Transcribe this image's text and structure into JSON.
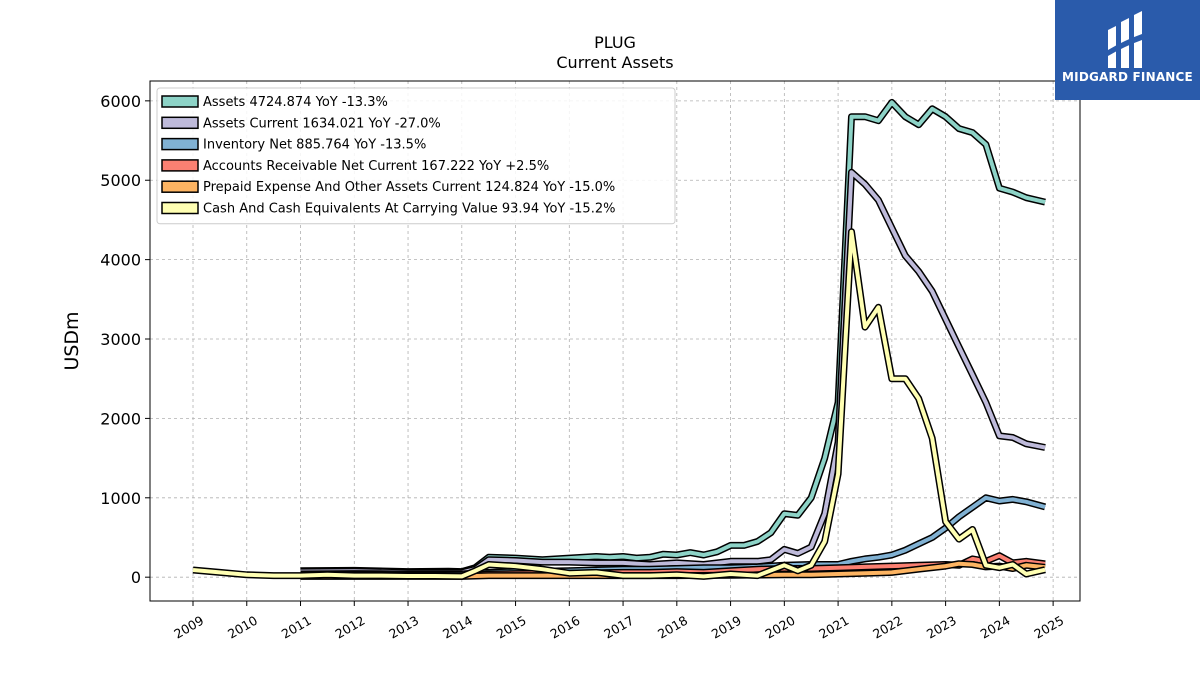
{
  "brand": {
    "name": "MIDGARD FINANCE",
    "bg_color": "#2a5bab"
  },
  "chart_data": {
    "type": "line",
    "title": "PLUG",
    "subtitle": "Current  Assets",
    "ylabel": "USDm",
    "xlabel": "",
    "ylim": [
      -300,
      6250
    ],
    "xlim": [
      2008.2,
      2025.5
    ],
    "yticks": [
      0,
      1000,
      2000,
      3000,
      4000,
      5000,
      6000
    ],
    "xticks": [
      "2009",
      "2010",
      "2011",
      "2012",
      "2013",
      "2014",
      "2015",
      "2016",
      "2017",
      "2018",
      "2019",
      "2020",
      "2021",
      "2022",
      "2023",
      "2024",
      "2025"
    ],
    "grid": true,
    "legend_position": "top-left",
    "series": [
      {
        "name": "Assets  4724.874 YoY -13.3%",
        "color": "#8dd3c7",
        "points": [
          [
            2011.0,
            80
          ],
          [
            2012.0,
            85
          ],
          [
            2013.0,
            70
          ],
          [
            2013.75,
            75
          ],
          [
            2014.0,
            70
          ],
          [
            2014.25,
            120
          ],
          [
            2014.5,
            250
          ],
          [
            2015.0,
            240
          ],
          [
            2015.5,
            220
          ],
          [
            2016.0,
            240
          ],
          [
            2016.5,
            260
          ],
          [
            2016.75,
            250
          ],
          [
            2017.0,
            260
          ],
          [
            2017.25,
            240
          ],
          [
            2017.5,
            250
          ],
          [
            2017.75,
            290
          ],
          [
            2018.0,
            280
          ],
          [
            2018.25,
            310
          ],
          [
            2018.5,
            280
          ],
          [
            2018.75,
            320
          ],
          [
            2019.0,
            400
          ],
          [
            2019.25,
            400
          ],
          [
            2019.5,
            450
          ],
          [
            2019.75,
            560
          ],
          [
            2020.0,
            800
          ],
          [
            2020.25,
            780
          ],
          [
            2020.5,
            1000
          ],
          [
            2020.75,
            1500
          ],
          [
            2021.0,
            2200
          ],
          [
            2021.25,
            5800
          ],
          [
            2021.5,
            5800
          ],
          [
            2021.75,
            5750
          ],
          [
            2022.0,
            5980
          ],
          [
            2022.25,
            5800
          ],
          [
            2022.5,
            5700
          ],
          [
            2022.75,
            5900
          ],
          [
            2023.0,
            5800
          ],
          [
            2023.25,
            5650
          ],
          [
            2023.5,
            5600
          ],
          [
            2023.75,
            5450
          ],
          [
            2024.0,
            4900
          ],
          [
            2024.25,
            4850
          ],
          [
            2024.5,
            4780
          ],
          [
            2024.85,
            4724.874
          ]
        ]
      },
      {
        "name": "Assets Current  1634.021 YoY -27.0%",
        "color": "#bebada",
        "points": [
          [
            2011.0,
            70
          ],
          [
            2012.0,
            75
          ],
          [
            2013.0,
            60
          ],
          [
            2014.0,
            60
          ],
          [
            2014.25,
            100
          ],
          [
            2014.5,
            220
          ],
          [
            2015.0,
            210
          ],
          [
            2015.5,
            190
          ],
          [
            2016.0,
            190
          ],
          [
            2016.5,
            180
          ],
          [
            2017.0,
            180
          ],
          [
            2017.5,
            160
          ],
          [
            2018.0,
            180
          ],
          [
            2018.5,
            160
          ],
          [
            2019.0,
            200
          ],
          [
            2019.5,
            200
          ],
          [
            2019.75,
            220
          ],
          [
            2020.0,
            350
          ],
          [
            2020.25,
            300
          ],
          [
            2020.5,
            380
          ],
          [
            2020.75,
            800
          ],
          [
            2021.0,
            1700
          ],
          [
            2021.25,
            5100
          ],
          [
            2021.5,
            4950
          ],
          [
            2021.75,
            4750
          ],
          [
            2022.0,
            4400
          ],
          [
            2022.25,
            4050
          ],
          [
            2022.5,
            3850
          ],
          [
            2022.75,
            3600
          ],
          [
            2023.0,
            3250
          ],
          [
            2023.25,
            2900
          ],
          [
            2023.5,
            2550
          ],
          [
            2023.75,
            2200
          ],
          [
            2024.0,
            1780
          ],
          [
            2024.25,
            1760
          ],
          [
            2024.5,
            1680
          ],
          [
            2024.85,
            1634.021
          ]
        ]
      },
      {
        "name": "Inventory Net  885.764 YoY -13.5%",
        "color": "#80b1d3",
        "points": [
          [
            2011.0,
            40
          ],
          [
            2012.0,
            45
          ],
          [
            2013.0,
            40
          ],
          [
            2014.0,
            40
          ],
          [
            2014.5,
            60
          ],
          [
            2015.0,
            70
          ],
          [
            2015.5,
            75
          ],
          [
            2016.0,
            80
          ],
          [
            2016.5,
            90
          ],
          [
            2017.0,
            100
          ],
          [
            2017.5,
            100
          ],
          [
            2018.0,
            110
          ],
          [
            2018.5,
            120
          ],
          [
            2019.0,
            120
          ],
          [
            2019.5,
            130
          ],
          [
            2020.0,
            150
          ],
          [
            2020.5,
            160
          ],
          [
            2021.0,
            160
          ],
          [
            2021.25,
            200
          ],
          [
            2021.5,
            230
          ],
          [
            2021.75,
            250
          ],
          [
            2022.0,
            280
          ],
          [
            2022.25,
            340
          ],
          [
            2022.5,
            420
          ],
          [
            2022.75,
            500
          ],
          [
            2023.0,
            620
          ],
          [
            2023.25,
            760
          ],
          [
            2023.5,
            880
          ],
          [
            2023.75,
            1000
          ],
          [
            2024.0,
            960
          ],
          [
            2024.25,
            980
          ],
          [
            2024.5,
            950
          ],
          [
            2024.85,
            885.764
          ]
        ]
      },
      {
        "name": "Accounts Receivable Net Current  167.222 YoY +2.5%",
        "color": "#fb8072",
        "points": [
          [
            2011.0,
            30
          ],
          [
            2012.0,
            30
          ],
          [
            2013.0,
            25
          ],
          [
            2014.0,
            20
          ],
          [
            2014.5,
            40
          ],
          [
            2015.0,
            45
          ],
          [
            2016.0,
            50
          ],
          [
            2017.0,
            60
          ],
          [
            2017.5,
            60
          ],
          [
            2018.0,
            70
          ],
          [
            2018.5,
            60
          ],
          [
            2019.0,
            80
          ],
          [
            2019.5,
            100
          ],
          [
            2020.0,
            110
          ],
          [
            2020.5,
            110
          ],
          [
            2021.0,
            120
          ],
          [
            2021.5,
            130
          ],
          [
            2022.0,
            140
          ],
          [
            2022.5,
            150
          ],
          [
            2023.0,
            160
          ],
          [
            2023.25,
            150
          ],
          [
            2023.5,
            230
          ],
          [
            2023.75,
            200
          ],
          [
            2024.0,
            270
          ],
          [
            2024.25,
            180
          ],
          [
            2024.5,
            200
          ],
          [
            2024.85,
            167.222
          ]
        ]
      },
      {
        "name": "Prepaid Expense And Other Assets Current  124.824 YoY -15.0%",
        "color": "#fdb462",
        "points": [
          [
            2011.0,
            10
          ],
          [
            2012.0,
            10
          ],
          [
            2013.0,
            10
          ],
          [
            2014.0,
            10
          ],
          [
            2014.5,
            20
          ],
          [
            2015.0,
            20
          ],
          [
            2016.0,
            20
          ],
          [
            2017.0,
            20
          ],
          [
            2018.0,
            20
          ],
          [
            2019.0,
            25
          ],
          [
            2020.0,
            30
          ],
          [
            2020.5,
            30
          ],
          [
            2021.0,
            40
          ],
          [
            2021.5,
            50
          ],
          [
            2022.0,
            60
          ],
          [
            2022.5,
            100
          ],
          [
            2023.0,
            140
          ],
          [
            2023.25,
            170
          ],
          [
            2023.5,
            160
          ],
          [
            2023.75,
            130
          ],
          [
            2024.0,
            140
          ],
          [
            2024.25,
            110
          ],
          [
            2024.5,
            150
          ],
          [
            2024.85,
            124.824
          ]
        ]
      },
      {
        "name": "Cash And Cash Equivalents At Carrying Value  93.94 YoY -15.2%",
        "color": "#ffffb3",
        "points": [
          [
            2009.0,
            90
          ],
          [
            2009.5,
            60
          ],
          [
            2010.0,
            30
          ],
          [
            2010.5,
            20
          ],
          [
            2011.0,
            20
          ],
          [
            2011.5,
            30
          ],
          [
            2012.0,
            20
          ],
          [
            2012.5,
            20
          ],
          [
            2013.0,
            15
          ],
          [
            2013.5,
            15
          ],
          [
            2014.0,
            10
          ],
          [
            2014.25,
            80
          ],
          [
            2014.5,
            160
          ],
          [
            2015.0,
            140
          ],
          [
            2015.5,
            100
          ],
          [
            2016.0,
            50
          ],
          [
            2016.5,
            60
          ],
          [
            2017.0,
            20
          ],
          [
            2017.5,
            20
          ],
          [
            2018.0,
            30
          ],
          [
            2018.5,
            10
          ],
          [
            2019.0,
            40
          ],
          [
            2019.5,
            20
          ],
          [
            2020.0,
            150
          ],
          [
            2020.25,
            80
          ],
          [
            2020.5,
            150
          ],
          [
            2020.75,
            450
          ],
          [
            2021.0,
            1300
          ],
          [
            2021.25,
            4350
          ],
          [
            2021.5,
            3150
          ],
          [
            2021.75,
            3400
          ],
          [
            2022.0,
            2500
          ],
          [
            2022.25,
            2500
          ],
          [
            2022.5,
            2250
          ],
          [
            2022.75,
            1750
          ],
          [
            2023.0,
            700
          ],
          [
            2023.25,
            480
          ],
          [
            2023.5,
            600
          ],
          [
            2023.75,
            150
          ],
          [
            2024.0,
            120
          ],
          [
            2024.25,
            160
          ],
          [
            2024.5,
            40
          ],
          [
            2024.85,
            93.94
          ]
        ]
      }
    ]
  }
}
